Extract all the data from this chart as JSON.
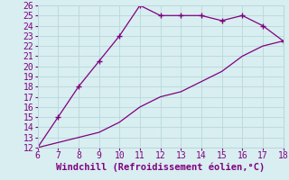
{
  "xlabel": "Windchill (Refroidissement éolien,°C)",
  "xlim": [
    6,
    18
  ],
  "ylim": [
    12,
    26
  ],
  "xticks": [
    6,
    7,
    8,
    9,
    10,
    11,
    12,
    13,
    14,
    15,
    16,
    17,
    18
  ],
  "yticks": [
    12,
    13,
    14,
    15,
    16,
    17,
    18,
    19,
    20,
    21,
    22,
    23,
    24,
    25,
    26
  ],
  "line_color": "#800080",
  "marker": "+",
  "background_color": "#d8eef0",
  "grid_color": "#b8d8da",
  "x_upper": [
    6,
    7,
    8,
    9,
    10,
    11,
    12,
    13,
    14,
    15,
    16,
    17,
    18
  ],
  "y_upper": [
    12,
    15,
    18,
    20.5,
    23,
    26,
    25,
    25,
    25,
    24.5,
    25,
    24,
    22.5
  ],
  "x_lower": [
    6,
    7,
    8,
    9,
    10,
    11,
    12,
    13,
    14,
    15,
    16,
    17,
    18
  ],
  "y_lower": [
    12,
    12.5,
    13,
    13.5,
    14.5,
    16,
    17,
    17.5,
    18.5,
    19.5,
    21,
    22,
    22.5
  ],
  "font_color": "#800080",
  "font_family": "monospace",
  "font_size": 7,
  "xlabel_fontsize": 7.5
}
